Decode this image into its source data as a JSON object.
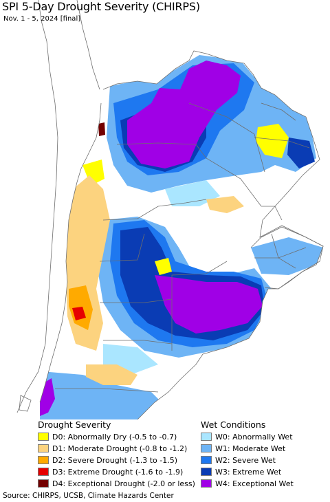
{
  "header": {
    "title": "SPI 5-Day Drought Severity (CHIRPS)",
    "subtitle": "Nov. 1 - 5, 2024 [final]"
  },
  "legend": {
    "drought_heading": "Drought Severity",
    "wet_heading": "Wet Conditions",
    "drought": [
      {
        "label": "D0: Abnormally Dry (-0.5 to -0.7)",
        "color": "#ffff00"
      },
      {
        "label": "D1: Moderate Drought (-0.8 to -1.2)",
        "color": "#fcd37f"
      },
      {
        "label": "D2: Severe Drought (-1.3 to -1.5)",
        "color": "#ffaa00"
      },
      {
        "label": "D3: Extreme Drought (-1.6 to -1.9)",
        "color": "#e60000"
      },
      {
        "label": "D4: Exceptional Drought (-2.0 or less)",
        "color": "#730000"
      }
    ],
    "wet": [
      {
        "label": "W0: Abnormally Wet",
        "color": "#aae6ff"
      },
      {
        "label": "W1: Moderate Wet",
        "color": "#6eb4f5"
      },
      {
        "label": "W2: Severe Wet",
        "color": "#1e78f0"
      },
      {
        "label": "W3: Extreme Wet",
        "color": "#0a3cb4"
      },
      {
        "label": "W4: Exceptional Wet",
        "color": "#a000e6"
      }
    ]
  },
  "colors": {
    "water": "#ffffff",
    "land_outside": "#ffffff",
    "boundary": "#6e6e6e"
  },
  "source": "Source: CHIRPS, UCSB, Climate Hazards Center"
}
